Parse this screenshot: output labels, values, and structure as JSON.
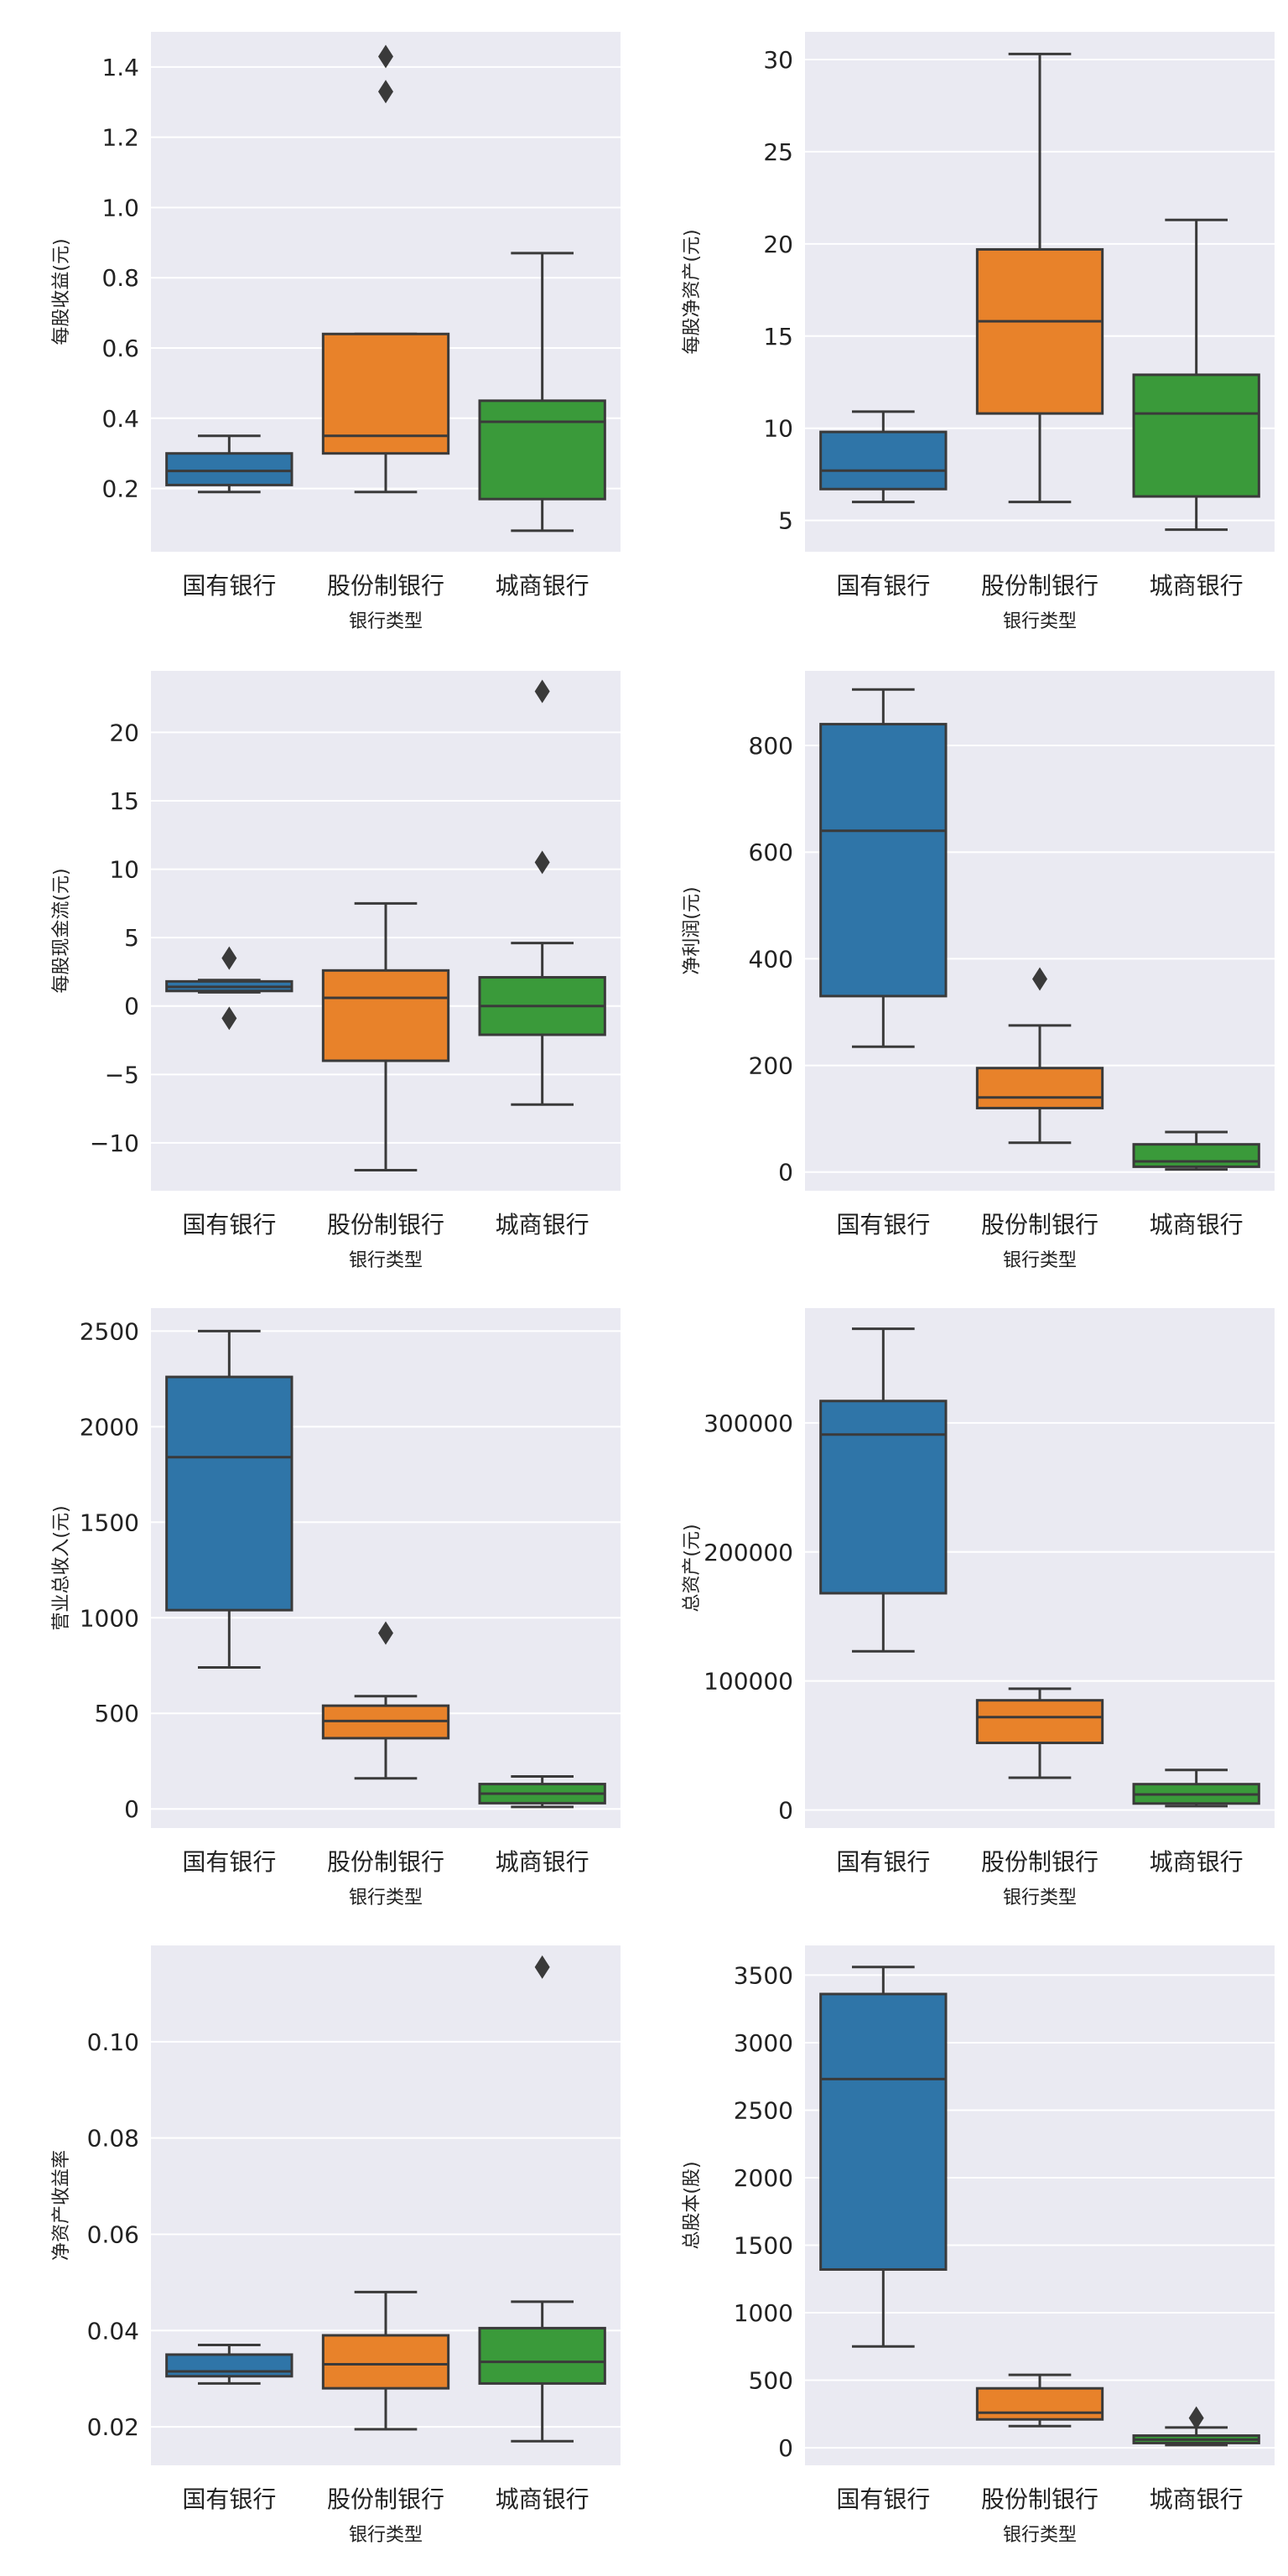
{
  "colors": {
    "background": "#eaeaf2",
    "grid": "#ffffff",
    "line": "#3a3a3a",
    "categories": [
      "#2f75a8",
      "#e8822a",
      "#3a9a3a"
    ]
  },
  "chart_data": [
    {
      "type": "box",
      "ylabel": "每股收益(元)",
      "xlabel": "银行类型",
      "categories": [
        "国有银行",
        "股份制银行",
        "城商银行"
      ],
      "ylim": [
        0.02,
        1.5
      ],
      "yticks": [
        0.2,
        0.4,
        0.6,
        0.8,
        1.0,
        1.2,
        1.4
      ],
      "tick_labels": [
        "0.2",
        "0.4",
        "0.6",
        "0.8",
        "1.0",
        "1.2",
        "1.4"
      ],
      "boxes": [
        {
          "whisker_low": 0.19,
          "q1": 0.21,
          "median": 0.25,
          "q3": 0.3,
          "whisker_high": 0.35,
          "outliers": []
        },
        {
          "whisker_low": 0.19,
          "q1": 0.3,
          "median": 0.35,
          "q3": 0.64,
          "whisker_high": 0.64,
          "outliers": [
            1.33,
            1.43
          ]
        },
        {
          "whisker_low": 0.08,
          "q1": 0.17,
          "median": 0.39,
          "q3": 0.45,
          "whisker_high": 0.87,
          "outliers": []
        }
      ]
    },
    {
      "type": "box",
      "ylabel": "每股净资产(元)",
      "xlabel": "银行类型",
      "categories": [
        "国有银行",
        "股份制银行",
        "城商银行"
      ],
      "ylim": [
        3.3,
        31.5
      ],
      "yticks": [
        5,
        10,
        15,
        20,
        25,
        30
      ],
      "tick_labels": [
        "5",
        "10",
        "15",
        "20",
        "25",
        "30"
      ],
      "boxes": [
        {
          "whisker_low": 6.0,
          "q1": 6.7,
          "median": 7.7,
          "q3": 9.8,
          "whisker_high": 10.9,
          "outliers": []
        },
        {
          "whisker_low": 6.0,
          "q1": 10.8,
          "median": 15.8,
          "q3": 19.7,
          "whisker_high": 30.3,
          "outliers": []
        },
        {
          "whisker_low": 4.5,
          "q1": 6.3,
          "median": 10.8,
          "q3": 12.9,
          "whisker_high": 21.3,
          "outliers": []
        }
      ]
    },
    {
      "type": "box",
      "ylabel": "每股现金流(元)",
      "xlabel": "银行类型",
      "categories": [
        "国有银行",
        "股份制银行",
        "城商银行"
      ],
      "ylim": [
        -13.5,
        24.5
      ],
      "yticks": [
        -10,
        -5,
        0,
        5,
        10,
        15,
        20
      ],
      "tick_labels": [
        "−10",
        "−5",
        "0",
        "5",
        "10",
        "15",
        "20"
      ],
      "boxes": [
        {
          "whisker_low": 1.0,
          "q1": 1.1,
          "median": 1.4,
          "q3": 1.8,
          "whisker_high": 1.9,
          "outliers": [
            3.5,
            -0.9
          ]
        },
        {
          "whisker_low": -12.0,
          "q1": -4.0,
          "median": 0.6,
          "q3": 2.6,
          "whisker_high": 7.5,
          "outliers": []
        },
        {
          "whisker_low": -7.2,
          "q1": -2.1,
          "median": 0.0,
          "q3": 2.1,
          "whisker_high": 4.6,
          "outliers": [
            10.5,
            23.0
          ]
        }
      ]
    },
    {
      "type": "box",
      "ylabel": "净利润(元)",
      "xlabel": "银行类型",
      "categories": [
        "国有银行",
        "股份制银行",
        "城商银行"
      ],
      "ylim": [
        -35,
        940
      ],
      "yticks": [
        0,
        200,
        400,
        600,
        800
      ],
      "tick_labels": [
        "0",
        "200",
        "400",
        "600",
        "800"
      ],
      "boxes": [
        {
          "whisker_low": 235,
          "q1": 330,
          "median": 640,
          "q3": 840,
          "whisker_high": 905,
          "outliers": []
        },
        {
          "whisker_low": 55,
          "q1": 120,
          "median": 140,
          "q3": 195,
          "whisker_high": 275,
          "outliers": [
            362
          ]
        },
        {
          "whisker_low": 5,
          "q1": 10,
          "median": 20,
          "q3": 52,
          "whisker_high": 75,
          "outliers": []
        }
      ]
    },
    {
      "type": "box",
      "ylabel": "营业总收入(元)",
      "xlabel": "银行类型",
      "categories": [
        "国有银行",
        "股份制银行",
        "城商银行"
      ],
      "ylim": [
        -100,
        2620
      ],
      "yticks": [
        0,
        500,
        1000,
        1500,
        2000,
        2500
      ],
      "tick_labels": [
        "0",
        "500",
        "1000",
        "1500",
        "2000",
        "2500"
      ],
      "boxes": [
        {
          "whisker_low": 740,
          "q1": 1040,
          "median": 1840,
          "q3": 2260,
          "whisker_high": 2500,
          "outliers": []
        },
        {
          "whisker_low": 160,
          "q1": 370,
          "median": 460,
          "q3": 540,
          "whisker_high": 590,
          "outliers": [
            920
          ]
        },
        {
          "whisker_low": 10,
          "q1": 30,
          "median": 80,
          "q3": 130,
          "whisker_high": 170,
          "outliers": []
        }
      ]
    },
    {
      "type": "box",
      "ylabel": "总资产(元)",
      "xlabel": "银行类型",
      "categories": [
        "国有银行",
        "股份制银行",
        "城商银行"
      ],
      "ylim": [
        -14000,
        389000
      ],
      "yticks": [
        0,
        100000,
        200000,
        300000
      ],
      "tick_labels": [
        "0",
        "100000",
        "200000",
        "300000"
      ],
      "boxes": [
        {
          "whisker_low": 123000,
          "q1": 168000,
          "median": 291000,
          "q3": 317000,
          "whisker_high": 373000,
          "outliers": []
        },
        {
          "whisker_low": 25000,
          "q1": 52000,
          "median": 72000,
          "q3": 85000,
          "whisker_high": 94000,
          "outliers": []
        },
        {
          "whisker_low": 3000,
          "q1": 5000,
          "median": 12000,
          "q3": 20000,
          "whisker_high": 31000,
          "outliers": []
        }
      ]
    },
    {
      "type": "box",
      "ylabel": "净资产收益率",
      "xlabel": "银行类型",
      "categories": [
        "国有银行",
        "股份制银行",
        "城商银行"
      ],
      "ylim": [
        0.012,
        0.12
      ],
      "yticks": [
        0.02,
        0.04,
        0.06,
        0.08,
        0.1
      ],
      "tick_labels": [
        "0.02",
        "0.04",
        "0.06",
        "0.08",
        "0.10"
      ],
      "boxes": [
        {
          "whisker_low": 0.029,
          "q1": 0.0305,
          "median": 0.0315,
          "q3": 0.035,
          "whisker_high": 0.037,
          "outliers": []
        },
        {
          "whisker_low": 0.0195,
          "q1": 0.028,
          "median": 0.033,
          "q3": 0.039,
          "whisker_high": 0.048,
          "outliers": []
        },
        {
          "whisker_low": 0.017,
          "q1": 0.029,
          "median": 0.0335,
          "q3": 0.0405,
          "whisker_high": 0.046,
          "outliers": [
            0.1155
          ]
        }
      ]
    },
    {
      "type": "box",
      "ylabel": "总股本(股)",
      "xlabel": "银行类型",
      "categories": [
        "国有银行",
        "股份制银行",
        "城商银行"
      ],
      "ylim": [
        -130,
        3720
      ],
      "yticks": [
        0,
        500,
        1000,
        1500,
        2000,
        2500,
        3000,
        3500
      ],
      "tick_labels": [
        "0",
        "500",
        "1000",
        "1500",
        "2000",
        "2500",
        "3000",
        "3500"
      ],
      "boxes": [
        {
          "whisker_low": 750,
          "q1": 1320,
          "median": 2730,
          "q3": 3360,
          "whisker_high": 3560,
          "outliers": []
        },
        {
          "whisker_low": 160,
          "q1": 210,
          "median": 260,
          "q3": 440,
          "whisker_high": 540,
          "outliers": []
        },
        {
          "whisker_low": 20,
          "q1": 35,
          "median": 60,
          "q3": 90,
          "whisker_high": 150,
          "outliers": [
            220
          ]
        }
      ]
    }
  ]
}
